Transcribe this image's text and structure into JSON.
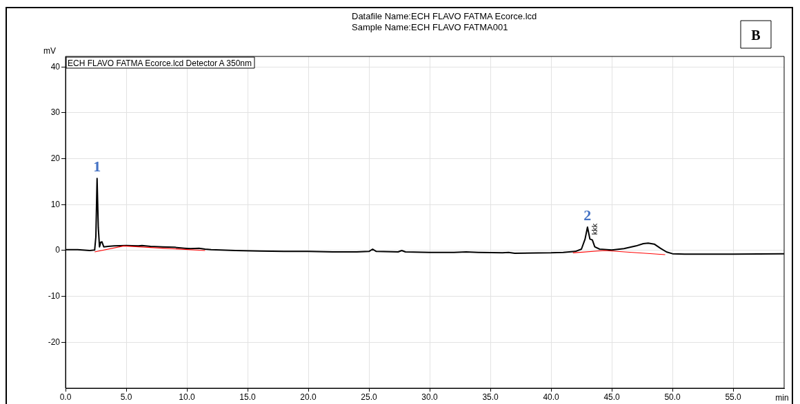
{
  "chart_data": {
    "type": "line",
    "title": "Datafile Name:ECH FLAVO FATMA Ecorce.lcd",
    "subtitle": "Sample Name:ECH FLAVO FATMA001",
    "xlabel": "min",
    "ylabel": "mV",
    "xlim": [
      0,
      59.2
    ],
    "ylim": [
      -30,
      42.3
    ],
    "xticks": [
      {
        "value": 0,
        "label": "0.0"
      },
      {
        "value": 5,
        "label": "5.0"
      },
      {
        "value": 10,
        "label": "10.0"
      },
      {
        "value": 15,
        "label": "15.0"
      },
      {
        "value": 20,
        "label": "20.0"
      },
      {
        "value": 25,
        "label": "25.0"
      },
      {
        "value": 30,
        "label": "30.0"
      },
      {
        "value": 35,
        "label": "35.0"
      },
      {
        "value": 40,
        "label": "40.0"
      },
      {
        "value": 45,
        "label": "45.0"
      },
      {
        "value": 50,
        "label": "50.0"
      },
      {
        "value": 55,
        "label": "55.0"
      }
    ],
    "yticks": [
      -20,
      -10,
      0,
      10,
      20,
      30,
      40
    ],
    "grid": true,
    "legend": "top left",
    "marker": "none",
    "line_style": "solid",
    "series": [
      {
        "name": "ECH FLAVO FATMA Ecorce.lcd Detector A 350nm",
        "color": "#000000",
        "x": [
          0,
          1,
          2,
          2.4,
          2.5,
          2.6,
          2.7,
          2.8,
          2.9,
          3.0,
          3.15,
          3.5,
          4,
          5,
          6,
          6.3,
          7,
          8,
          9,
          9.8,
          10.3,
          11,
          11.5,
          12,
          14,
          16,
          18,
          20,
          22,
          24,
          25,
          25.3,
          25.6,
          27.4,
          27.7,
          28,
          30,
          32,
          33,
          34,
          36,
          36.5,
          37,
          40,
          41,
          42,
          42.5,
          42.8,
          43.0,
          43.2,
          43.4,
          43.6,
          44,
          45,
          46,
          47,
          47.6,
          48,
          48.5,
          49,
          49.5,
          50,
          51,
          55,
          59.2
        ],
        "values": [
          0.2,
          0.2,
          0.0,
          0.1,
          3,
          15.7,
          5,
          0.8,
          1.8,
          1.9,
          0.8,
          0.9,
          1.0,
          1.1,
          1.0,
          1.1,
          0.9,
          0.8,
          0.7,
          0.5,
          0.4,
          0.5,
          0.3,
          0.2,
          0.0,
          -0.1,
          -0.2,
          -0.2,
          -0.3,
          -0.3,
          -0.2,
          0.3,
          -0.2,
          -0.3,
          0.0,
          -0.3,
          -0.4,
          -0.4,
          -0.3,
          -0.4,
          -0.5,
          -0.4,
          -0.6,
          -0.5,
          -0.4,
          -0.2,
          0.3,
          2.5,
          5.1,
          2.5,
          2.3,
          0.8,
          0.3,
          0.1,
          0.4,
          1.0,
          1.5,
          1.6,
          1.4,
          0.5,
          -0.3,
          -0.7,
          -0.8,
          -0.8,
          -0.7
        ]
      },
      {
        "color": "#ff0000",
        "x": [
          2.4,
          4.8,
          8,
          11.5,
          20,
          41.8,
          44.4,
          49.4
        ],
        "values": [
          -0.3,
          1.0,
          0.5,
          0.0,
          null,
          -0.5,
          0,
          -0.9
        ]
      }
    ],
    "annotations": [
      {
        "text": "1",
        "x": 2.6,
        "y": 15.7
      },
      {
        "text": "2",
        "x": 43.0,
        "y": 5.1
      },
      {
        "text": "kkk",
        "x": 43.5,
        "y": 2.5
      },
      "B"
    ]
  }
}
